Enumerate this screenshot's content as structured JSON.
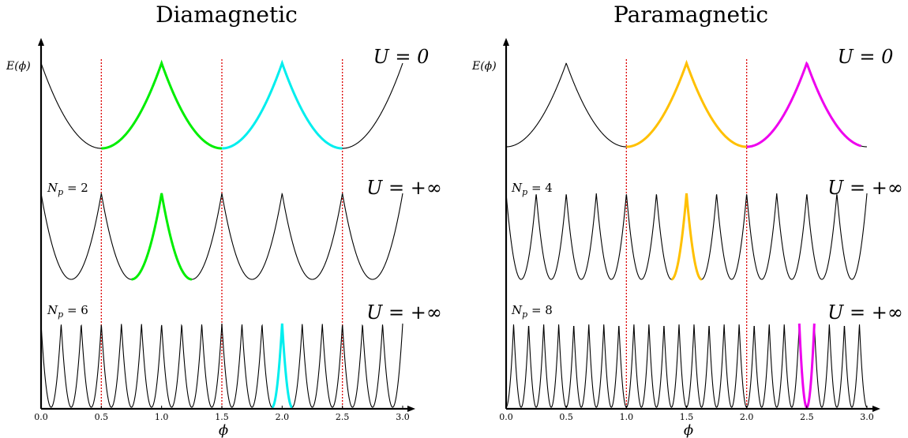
{
  "panels": [
    {
      "title": "Diamagnetic",
      "ylabel": "E(ϕ)",
      "xlabel": "ϕ",
      "ticks": [
        "0.0",
        "0.5",
        "1.0",
        "1.5",
        "2.0",
        "2.5",
        "3.0"
      ],
      "rows": [
        {
          "u_label": "U = 0",
          "n_label": "",
          "period": 1.0,
          "offset": 0.5
        },
        {
          "u_label": "U = +∞",
          "n_label": "N_p = 2",
          "period": 0.5,
          "offset": 0.25
        },
        {
          "u_label": "U = +∞",
          "n_label": "N_p = 6",
          "period": 0.16667,
          "offset": 0.0833
        }
      ],
      "highlights": [
        {
          "row": 0,
          "from": 0.5,
          "to": 1.5,
          "color": "#00ee00"
        },
        {
          "row": 0,
          "from": 1.5,
          "to": 2.5,
          "color": "#00eeee"
        },
        {
          "row": 1,
          "from": 0.75,
          "to": 1.25,
          "color": "#00ee00"
        },
        {
          "row": 2,
          "from": 1.9167,
          "to": 2.0833,
          "color": "#00eeee"
        }
      ],
      "dotted_x": [
        0.5,
        1.5,
        2.5
      ]
    },
    {
      "title": "Paramagnetic",
      "ylabel": "E(ϕ)",
      "xlabel": "ϕ",
      "ticks": [
        "0.0",
        "0.5",
        "1.0",
        "1.5",
        "2.0",
        "2.5",
        "3.0"
      ],
      "rows": [
        {
          "u_label": "U = 0",
          "n_label": "",
          "period": 1.0,
          "offset": 0.0
        },
        {
          "u_label": "U = +∞",
          "n_label": "N_p = 4",
          "period": 0.25,
          "offset": 0.125
        },
        {
          "u_label": "U = +∞",
          "n_label": "N_p = 8",
          "period": 0.125,
          "offset": 0.0
        }
      ],
      "highlights": [
        {
          "row": 0,
          "from": 1.0,
          "to": 2.0,
          "color": "#ffc000"
        },
        {
          "row": 0,
          "from": 2.0,
          "to": 2.95,
          "color": "#ee00ee"
        },
        {
          "row": 1,
          "from": 1.375,
          "to": 1.625,
          "color": "#ffc000"
        },
        {
          "row": 2,
          "from": 2.4375,
          "to": 2.5625,
          "color": "#ee00ee"
        }
      ],
      "dotted_x": [
        1.0,
        2.0
      ]
    }
  ],
  "colors": {
    "curve": "#000000",
    "dotted": "#dd0000",
    "axis": "#000000"
  }
}
